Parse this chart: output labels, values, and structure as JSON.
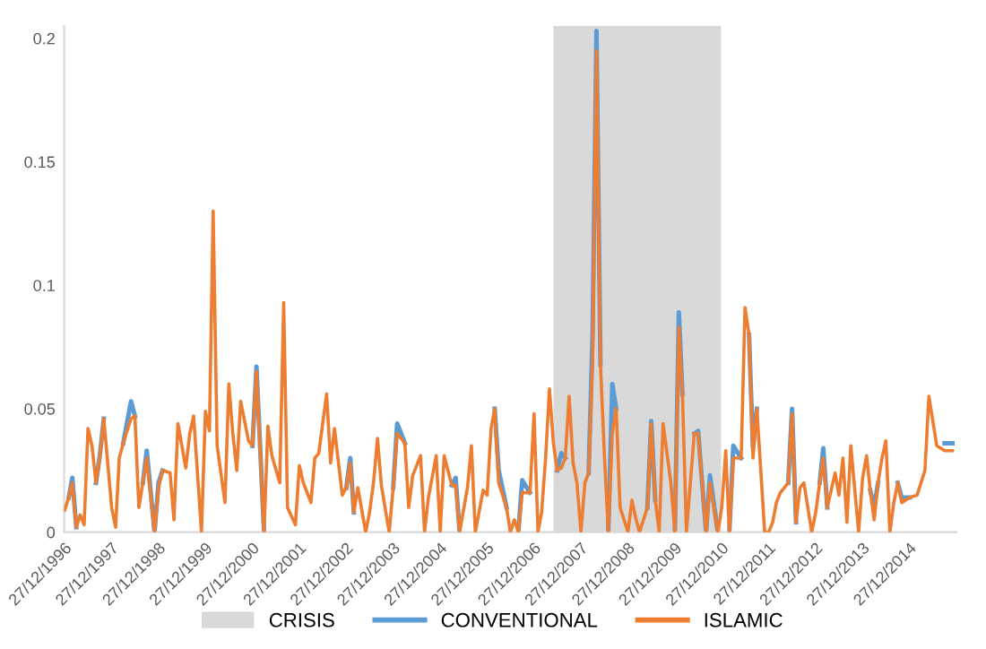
{
  "chart_data": {
    "type": "line",
    "x": [
      "1997-01",
      "1997-02",
      "1997-03",
      "1997-04",
      "1997-05",
      "1997-06",
      "1997-07",
      "1997-08",
      "1997-09",
      "1997-10",
      "1997-11",
      "1998-01",
      "1998-02",
      "1998-03",
      "1998-04",
      "1998-06",
      "1998-07",
      "1998-08",
      "1998-09",
      "1998-10",
      "1998-12",
      "1999-01",
      "1999-02",
      "1999-04",
      "1999-05",
      "1999-06",
      "1999-08",
      "1999-09",
      "1999-10",
      "1999-12",
      "2000-01",
      "2000-02",
      "2000-03",
      "2000-04",
      "2000-06",
      "2000-07",
      "2000-08",
      "2000-09",
      "2000-10",
      "2000-12",
      "2001-01",
      "2001-02",
      "2001-04",
      "2001-05",
      "2001-06",
      "2001-08",
      "2001-09",
      "2001-10",
      "2001-12",
      "2002-01",
      "2002-02",
      "2002-04",
      "2002-05",
      "2002-06",
      "2002-08",
      "2002-09",
      "2002-10",
      "2002-12",
      "2003-01",
      "2003-02",
      "2003-03",
      "2003-04",
      "2003-06",
      "2003-07",
      "2003-08",
      "2003-09",
      "2003-10",
      "2003-12",
      "2004-01",
      "2004-02",
      "2004-04",
      "2004-05",
      "2004-06",
      "2004-08",
      "2004-09",
      "2004-10",
      "2004-12",
      "2005-01",
      "2005-02",
      "2005-04",
      "2005-05",
      "2005-06",
      "2005-08",
      "2005-09",
      "2005-10",
      "2005-12",
      "2006-01",
      "2006-02",
      "2006-03",
      "2006-04",
      "2006-06",
      "2006-07",
      "2006-08",
      "2006-09",
      "2006-10",
      "2006-12",
      "2007-01",
      "2007-02",
      "2007-03",
      "2007-04",
      "2007-05",
      "2007-06",
      "2007-07",
      "2007-08",
      "2007-09",
      "2007-10",
      "2007-11",
      "2007-12",
      "2008-01",
      "2008-02",
      "2008-03",
      "2008-04",
      "2008-05",
      "2008-06",
      "2008-07",
      "2008-08",
      "2008-09",
      "2008-10",
      "2008-11",
      "2009-01",
      "2009-02",
      "2009-03",
      "2009-04",
      "2009-06",
      "2009-07",
      "2009-08",
      "2009-09",
      "2009-10",
      "2009-12",
      "2010-01",
      "2010-02",
      "2010-03",
      "2010-04",
      "2010-06",
      "2010-07",
      "2010-08",
      "2010-09",
      "2010-10",
      "2010-12",
      "2011-01",
      "2011-02",
      "2011-03",
      "2011-04",
      "2011-06",
      "2011-07",
      "2011-08",
      "2011-09",
      "2011-10",
      "2011-12",
      "2012-01",
      "2012-02",
      "2012-03",
      "2012-04",
      "2012-06",
      "2012-07",
      "2012-08",
      "2012-09",
      "2012-10",
      "2012-12",
      "2013-01",
      "2013-02",
      "2013-03",
      "2013-04",
      "2013-06",
      "2013-07",
      "2013-08",
      "2013-09",
      "2013-10",
      "2013-12",
      "2014-01",
      "2014-02",
      "2014-03",
      "2014-04",
      "2014-05",
      "2014-06",
      "2014-07",
      "2014-08",
      "2014-09",
      "2014-10",
      "2014-11",
      "2015-01",
      "2015-03",
      "2015-05",
      "2015-06",
      "2015-08",
      "2015-10",
      "2015-12"
    ],
    "series": [
      {
        "name": "CONVENTIONAL",
        "color": "#5b9bd5",
        "values": [
          null,
          0.014,
          0.022,
          0.002,
          null,
          null,
          null,
          null,
          0.02,
          0.031,
          0.046,
          null,
          null,
          null,
          0.036,
          0.053,
          0.047,
          null,
          0.02,
          0.033,
          0.0,
          0.02,
          0.025,
          null,
          null,
          null,
          null,
          null,
          null,
          null,
          null,
          null,
          null,
          null,
          null,
          null,
          null,
          null,
          null,
          null,
          0.035,
          0.067,
          0.0,
          null,
          null,
          null,
          null,
          null,
          null,
          null,
          null,
          null,
          null,
          null,
          null,
          null,
          null,
          null,
          0.018,
          0.03,
          0.008,
          null,
          null,
          null,
          null,
          null,
          null,
          null,
          0.018,
          0.044,
          0.036,
          null,
          null,
          null,
          null,
          null,
          null,
          null,
          null,
          0.019,
          0.022,
          0.0,
          null,
          null,
          null,
          null,
          null,
          null,
          0.05,
          0.025,
          0.01,
          null,
          null,
          0.0,
          0.021,
          0.016,
          null,
          null,
          null,
          null,
          null,
          null,
          0.025,
          0.032,
          0.03,
          null,
          null,
          null,
          null,
          null,
          0.024,
          0.081,
          0.203,
          0.068,
          null,
          0.0,
          0.06,
          0.05,
          null,
          null,
          null,
          null,
          null,
          0.01,
          0.045,
          0.013,
          null,
          null,
          null,
          0.0,
          0.089,
          0.056,
          null,
          0.04,
          0.041,
          0.02,
          0.0,
          0.023,
          0.0,
          null,
          null,
          0.0,
          0.035,
          0.03,
          null,
          0.08,
          0.034,
          0.05,
          null,
          null,
          null,
          null,
          null,
          0.02,
          0.05,
          0.004,
          null,
          null,
          null,
          null,
          0.02,
          0.034,
          0.01,
          null,
          null,
          null,
          null,
          null,
          null,
          null,
          null,
          0.017,
          0.01,
          0.02,
          null,
          null,
          null,
          null,
          0.02,
          0.014,
          0.014,
          null,
          null,
          null,
          null,
          0.036,
          0.036
        ]
      },
      {
        "name": "ISLAMIC",
        "color": "#ed7d31",
        "values": [
          0.009,
          0.014,
          0.02,
          0.002,
          0.007,
          0.003,
          0.042,
          0.035,
          0.02,
          0.03,
          0.046,
          0.01,
          0.002,
          0.03,
          0.036,
          0.046,
          0.047,
          0.01,
          0.02,
          0.03,
          0.0,
          0.018,
          0.025,
          0.024,
          0.005,
          0.044,
          0.026,
          0.04,
          0.047,
          0.0,
          0.049,
          0.041,
          0.13,
          0.035,
          0.012,
          0.06,
          0.04,
          0.025,
          0.053,
          0.037,
          0.035,
          0.065,
          0.0,
          0.043,
          0.031,
          0.02,
          0.093,
          0.01,
          0.003,
          0.027,
          0.02,
          0.012,
          0.03,
          0.032,
          0.056,
          0.028,
          0.042,
          0.015,
          0.018,
          0.028,
          0.008,
          0.018,
          0.0,
          0.008,
          0.02,
          0.038,
          0.019,
          0.0,
          0.018,
          0.04,
          0.036,
          0.01,
          0.023,
          0.031,
          0.0,
          0.014,
          0.031,
          0.0,
          0.031,
          0.019,
          0.019,
          0.0,
          0.018,
          0.035,
          0.0,
          0.017,
          0.015,
          0.042,
          0.05,
          0.02,
          0.01,
          0.0,
          0.005,
          0.0,
          0.016,
          0.016,
          0.048,
          0.0,
          0.008,
          0.03,
          0.058,
          0.036,
          0.025,
          0.026,
          0.03,
          0.055,
          0.028,
          0.02,
          0.0,
          0.02,
          0.024,
          0.069,
          0.195,
          0.068,
          0.032,
          0.0,
          0.04,
          0.05,
          0.01,
          0.0,
          0.013,
          0.006,
          0.0,
          0.01,
          0.044,
          0.013,
          0.0,
          0.044,
          0.02,
          0.0,
          0.083,
          0.056,
          0.0,
          0.04,
          0.04,
          0.02,
          0.0,
          0.02,
          0.0,
          0.01,
          0.033,
          0.0,
          0.03,
          0.03,
          0.091,
          0.08,
          0.03,
          0.05,
          0.0,
          0.0,
          0.004,
          0.012,
          0.016,
          0.02,
          0.048,
          0.004,
          0.018,
          0.02,
          0.0,
          0.008,
          0.02,
          0.03,
          0.01,
          0.024,
          0.015,
          0.03,
          0.004,
          0.035,
          0.0,
          0.022,
          0.031,
          0.017,
          0.005,
          0.02,
          0.03,
          0.037,
          0.0,
          0.012,
          0.02,
          0.012,
          0.014,
          0.015,
          0.025,
          0.055,
          0.035,
          0.033,
          0.033
        ]
      }
    ],
    "bands": [
      {
        "axis": "x",
        "from": "2007-06",
        "to": "2010-12-27",
        "label": "CRISIS",
        "color": "#d9d9d9"
      }
    ],
    "xlim": [
      "1996-12-27",
      "2016-01-01"
    ],
    "xticks": [
      {
        "value": "1996-12-27",
        "label": "27/12/1996"
      },
      {
        "value": "1997-12-27",
        "label": "27/12/1997"
      },
      {
        "value": "1998-12-27",
        "label": "27/12/1998"
      },
      {
        "value": "1999-12-27",
        "label": "27/12/1999"
      },
      {
        "value": "2000-12-27",
        "label": "27/12/2000"
      },
      {
        "value": "2001-12-27",
        "label": "27/12/2001"
      },
      {
        "value": "2002-12-27",
        "label": "27/12/2002"
      },
      {
        "value": "2003-12-27",
        "label": "27/12/2003"
      },
      {
        "value": "2004-12-27",
        "label": "27/12/2004"
      },
      {
        "value": "2005-12-27",
        "label": "27/12/2005"
      },
      {
        "value": "2006-12-27",
        "label": "27/12/2006"
      },
      {
        "value": "2007-12-27",
        "label": "27/12/2007"
      },
      {
        "value": "2008-12-27",
        "label": "27/12/2008"
      },
      {
        "value": "2009-12-27",
        "label": "27/12/2009"
      },
      {
        "value": "2010-12-27",
        "label": "27/12/2010"
      },
      {
        "value": "2011-12-27",
        "label": "27/12/2011"
      },
      {
        "value": "2012-12-27",
        "label": "27/12/2012"
      },
      {
        "value": "2013-12-27",
        "label": "27/12/2013"
      },
      {
        "value": "2014-12-27",
        "label": "27/12/2014"
      }
    ],
    "ylim": [
      0,
      0.205
    ],
    "yticks": [
      0,
      0.05,
      0.1,
      0.15,
      0.2
    ],
    "grid": false,
    "legend": "bottom",
    "line_style": "solid",
    "marker": "none"
  }
}
